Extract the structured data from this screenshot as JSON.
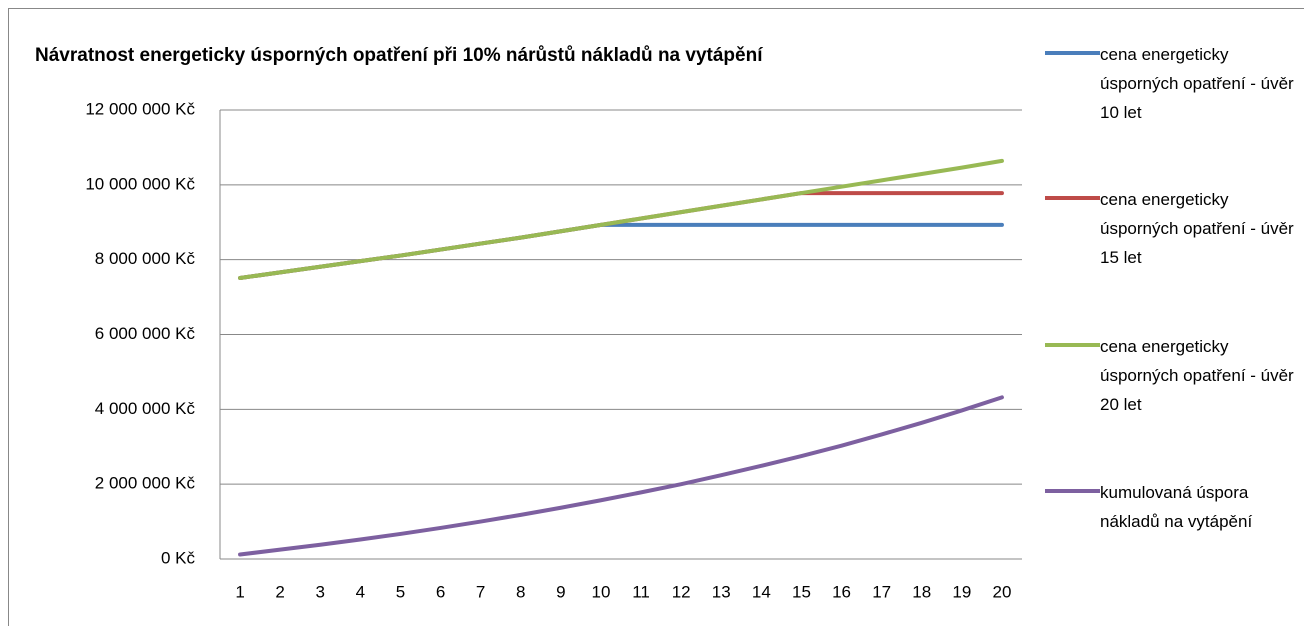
{
  "chart_data": {
    "type": "line",
    "title": "Návratnost energeticky úsporných opatření při 10% nárůstů nákladů na vytápění",
    "categories": [
      "1",
      "2",
      "3",
      "4",
      "5",
      "6",
      "7",
      "8",
      "9",
      "10",
      "11",
      "12",
      "13",
      "14",
      "15",
      "16",
      "17",
      "18",
      "19",
      "20"
    ],
    "series": [
      {
        "name": "cena energeticky úsporných opatření - úvěr 10 let",
        "color": "#4a7ebb",
        "values": [
          7510000,
          7660000,
          7810000,
          7960000,
          8110000,
          8270000,
          8430000,
          8590000,
          8760000,
          8930000,
          8930000,
          8930000,
          8930000,
          8930000,
          8930000,
          8930000,
          8930000,
          8930000,
          8930000,
          8930000
        ]
      },
      {
        "name": "cena energeticky úsporných opatření - úvěr 15 let",
        "color": "#be4b48",
        "values": [
          7510000,
          7660000,
          7810000,
          7960000,
          8110000,
          8270000,
          8430000,
          8590000,
          8760000,
          8930000,
          9100000,
          9270000,
          9440000,
          9610000,
          9780000,
          9780000,
          9780000,
          9780000,
          9780000,
          9780000
        ]
      },
      {
        "name": "cena energeticky úsporných opatření - úvěr 20 let",
        "color": "#98b954",
        "values": [
          7510000,
          7660000,
          7810000,
          7960000,
          8110000,
          8270000,
          8430000,
          8590000,
          8760000,
          8930000,
          9100000,
          9270000,
          9440000,
          9610000,
          9780000,
          9950000,
          10120000,
          10290000,
          10460000,
          10640000
        ]
      },
      {
        "name": "kumulovaná úspora nákladů na vytápění",
        "color": "#7d60a0",
        "values": [
          120000,
          250000,
          380000,
          520000,
          670000,
          830000,
          1000000,
          1180000,
          1370000,
          1570000,
          1780000,
          2000000,
          2240000,
          2490000,
          2750000,
          3030000,
          3330000,
          3640000,
          3970000,
          4320000
        ]
      }
    ],
    "ylim": [
      0,
      12000000
    ],
    "yticks": [
      {
        "value": 0,
        "label": "0 Kč"
      },
      {
        "value": 2000000,
        "label": "2 000 000 Kč"
      },
      {
        "value": 4000000,
        "label": "4 000 000 Kč"
      },
      {
        "value": 6000000,
        "label": "6 000 000 Kč"
      },
      {
        "value": 8000000,
        "label": "8 000 000 Kč"
      },
      {
        "value": 10000000,
        "label": "10 000 000 Kč"
      },
      {
        "value": 12000000,
        "label": "12 000 000 Kč"
      }
    ],
    "grid": true,
    "legend": "right"
  }
}
